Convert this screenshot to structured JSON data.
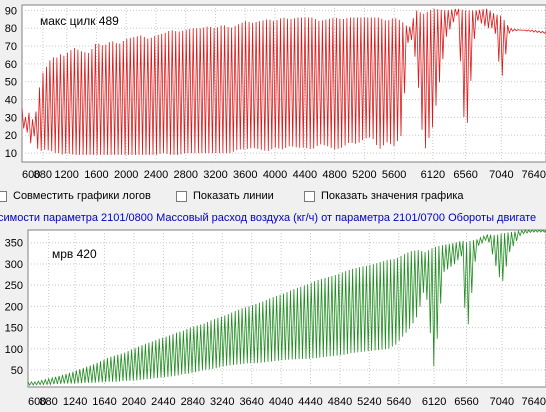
{
  "charts": {
    "top": {
      "title": "макс цилк 489",
      "color": "#dd1a1a"
    },
    "bottom": {
      "title": "мрв 420",
      "color": "#1e8c1e"
    }
  },
  "options": {
    "combine_logs": "Совместить графики логов",
    "show_lines": "Показать линии",
    "show_values": "Показать значения графика"
  },
  "caption": {
    "text": "симости параметра 2101/0800 Массовый расход воздуха (кг/ч) от параметра 2101/0700 Обороты двигате"
  },
  "chart_data": [
    {
      "type": "line",
      "title": "макс цилк 489",
      "xlim": [
        600,
        7640
      ],
      "ylim": [
        5,
        93
      ],
      "x_ticks": [
        600,
        880,
        1200,
        1600,
        2000,
        2400,
        2800,
        3200,
        3600,
        4000,
        4400,
        4800,
        5200,
        5600,
        6120,
        6560,
        7040,
        7640
      ],
      "x_tick_labels": [
        "600",
        "880",
        "1200",
        "1600",
        "2000",
        "2400",
        "2800",
        "3200",
        "3600",
        "4000",
        "4400",
        "4800",
        "5200",
        "5600",
        "6120",
        "6560",
        "7040",
        "7640"
      ],
      "y_ticks": [
        10,
        20,
        30,
        40,
        50,
        60,
        70,
        80,
        90
      ],
      "y_tick_labels": [
        "10",
        "20",
        "30",
        "40",
        "50",
        "60",
        "70",
        "80",
        "90"
      ],
      "grid": true,
      "series": [
        {
          "color": "#dd1a1a",
          "x": [
            600,
            650,
            700,
            750,
            800,
            850,
            880,
            920,
            960,
            1000,
            1050,
            1100,
            1150,
            1200,
            1300,
            1400,
            1500,
            1600,
            1700,
            1800,
            1900,
            2000,
            2100,
            2200,
            2300,
            2400,
            2500,
            2600,
            2700,
            2800,
            2900,
            3000,
            3100,
            3200,
            3300,
            3400,
            3500,
            3600,
            3700,
            3800,
            3900,
            4000,
            4100,
            4200,
            4300,
            4400,
            4500,
            4600,
            4700,
            4800,
            4900,
            5000,
            5100,
            5200,
            5300,
            5400,
            5500,
            5600,
            5700,
            5800,
            5900,
            6000,
            6120,
            6300,
            6450,
            6560,
            6700,
            6850,
            6950,
            7040,
            7150,
            7300,
            7450,
            7640
          ],
          "max": [
            35,
            30,
            33,
            28,
            35,
            52,
            55,
            58,
            60,
            65,
            62,
            66,
            64,
            66,
            69,
            67,
            66,
            72,
            70,
            73,
            71,
            74,
            75,
            76,
            74,
            76,
            77,
            79,
            78,
            79,
            80,
            80,
            81,
            80,
            82,
            80,
            82,
            84,
            83,
            84,
            85,
            84,
            86,
            85,
            86,
            86,
            86,
            84,
            85,
            86,
            85,
            86,
            86,
            86,
            86,
            86,
            84,
            86,
            84,
            80,
            90,
            88,
            91,
            90,
            91,
            90,
            90,
            91,
            88,
            87,
            80,
            79,
            79,
            78
          ],
          "min": [
            20,
            28,
            12,
            22,
            13,
            10,
            15,
            10,
            12,
            11,
            10,
            10,
            9,
            10,
            9,
            9,
            9,
            9,
            9,
            9,
            9,
            9,
            9,
            9,
            9,
            9,
            10,
            9,
            9,
            10,
            10,
            10,
            10,
            10,
            10,
            10,
            12,
            12,
            13,
            12,
            11,
            13,
            12,
            14,
            13,
            13,
            12,
            15,
            14,
            12,
            13,
            16,
            15,
            18,
            19,
            12,
            16,
            14,
            20,
            80,
            60,
            10,
            25,
            75,
            88,
            15,
            85,
            80,
            80,
            50,
            78,
            79,
            78,
            77
          ]
        }
      ]
    },
    {
      "type": "line",
      "title": "мрв 420",
      "xlim": [
        600,
        7640
      ],
      "ylim": [
        10,
        380
      ],
      "x_ticks": [
        600,
        880,
        1240,
        1640,
        2040,
        2440,
        2840,
        3240,
        3640,
        4040,
        4440,
        4840,
        5240,
        5640,
        6120,
        6560,
        7040,
        7640
      ],
      "x_tick_labels": [
        "600",
        "880",
        "1240",
        "1640",
        "2040",
        "2440",
        "2840",
        "3240",
        "3640",
        "4040",
        "4440",
        "4840",
        "5240",
        "5640",
        "6120",
        "6560",
        "7040",
        "7640"
      ],
      "y_ticks": [
        50,
        100,
        150,
        200,
        250,
        300,
        350
      ],
      "y_tick_labels": [
        "50",
        "100",
        "150",
        "200",
        "250",
        "300",
        "350"
      ],
      "grid": true,
      "series": [
        {
          "color": "#1e8c1e",
          "x": [
            600,
            700,
            800,
            900,
            1000,
            1100,
            1200,
            1300,
            1400,
            1500,
            1600,
            1700,
            1800,
            1900,
            2000,
            2100,
            2200,
            2300,
            2400,
            2500,
            2600,
            2700,
            2800,
            2900,
            3000,
            3100,
            3200,
            3300,
            3400,
            3500,
            3600,
            3700,
            3800,
            3900,
            4000,
            4100,
            4200,
            4300,
            4400,
            4500,
            4600,
            4700,
            4800,
            4900,
            5000,
            5100,
            5200,
            5300,
            5400,
            5500,
            5600,
            5700,
            5800,
            5900,
            6000,
            6120,
            6250,
            6400,
            6500,
            6560,
            6700,
            6850,
            6950,
            7040,
            7150,
            7300,
            7450,
            7640
          ],
          "max": [
            22,
            22,
            26,
            30,
            35,
            40,
            45,
            52,
            58,
            64,
            72,
            80,
            85,
            90,
            98,
            105,
            112,
            118,
            125,
            130,
            137,
            142,
            150,
            155,
            160,
            168,
            174,
            180,
            188,
            195,
            200,
            206,
            212,
            220,
            226,
            232,
            240,
            246,
            252,
            260,
            265,
            270,
            275,
            282,
            288,
            292,
            296,
            300,
            305,
            310,
            312,
            322,
            330,
            333,
            328,
            340,
            345,
            350,
            355,
            352,
            358,
            370,
            368,
            372,
            375,
            378,
            385,
            380
          ],
          "min": [
            14,
            15,
            16,
            16,
            17,
            18,
            18,
            19,
            20,
            20,
            21,
            22,
            22,
            24,
            25,
            26,
            28,
            30,
            32,
            34,
            36,
            40,
            42,
            46,
            50,
            52,
            56,
            60,
            62,
            64,
            66,
            66,
            68,
            70,
            72,
            74,
            75,
            76,
            76,
            78,
            80,
            82,
            84,
            86,
            90,
            92,
            94,
            96,
            98,
            100,
            110,
            130,
            150,
            180,
            250,
            50,
            280,
            300,
            320,
            120,
            340,
            360,
            300,
            250,
            330,
            370,
            375,
            375
          ]
        }
      ]
    }
  ]
}
